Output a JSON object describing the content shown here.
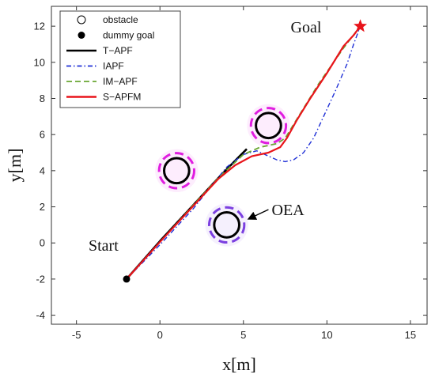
{
  "chart_data": {
    "type": "line",
    "xlabel": "x[m]",
    "ylabel": "y[m]",
    "xlim": [
      -6.5,
      16
    ],
    "ylim": [
      -4.5,
      13.1
    ],
    "xticks": [
      -5,
      0,
      5,
      10,
      15
    ],
    "yticks": [
      -4,
      -2,
      0,
      2,
      4,
      6,
      8,
      10,
      12
    ],
    "grid": false,
    "legend_position": "top-left",
    "legend": [
      {
        "label": "obstacle",
        "marker": "open-circle",
        "color": "#000000"
      },
      {
        "label": "dummy goal",
        "marker": "filled-circle",
        "color": "#000000"
      },
      {
        "label": "T−APF",
        "line": "solid",
        "color": "#000000"
      },
      {
        "label": "IAPF",
        "line": "dashdot",
        "color": "#1f2fd6"
      },
      {
        "label": "IM−APF",
        "line": "dashed",
        "color": "#6aa632"
      },
      {
        "label": "S−APFM",
        "line": "solid",
        "color": "#e8141a"
      }
    ],
    "start": {
      "label": "Start",
      "x": -2,
      "y": -2
    },
    "goal": {
      "label": "Goal",
      "x": 12,
      "y": 12,
      "marker": "star",
      "color": "#e8141a"
    },
    "obstacles": [
      {
        "x": 1,
        "y": 4,
        "r": 0.75,
        "oea_r": 1.05,
        "oea_color": "#e01ee0"
      },
      {
        "x": 6.5,
        "y": 6.5,
        "r": 0.75,
        "oea_r": 1.05,
        "oea_color": "#e01ee0"
      },
      {
        "x": 4,
        "y": 1,
        "r": 0.75,
        "oea_r": 1.05,
        "oea_color": "#7b3fe0"
      }
    ],
    "annotation": {
      "text": "OEA",
      "x": 6.6,
      "y": 1.85,
      "arrow_from": [
        6.5,
        1.85
      ],
      "arrow_to": [
        5.35,
        1.35
      ]
    },
    "series": [
      {
        "name": "T−APF",
        "color": "#000000",
        "dash": "solid",
        "x": [
          -2,
          0,
          2,
          3.5,
          4.5,
          5.2
        ],
        "y": [
          -2,
          0.1,
          2.1,
          3.6,
          4.55,
          5.2
        ]
      },
      {
        "name": "IAPF",
        "color": "#1f2fd6",
        "dash": "dashdot",
        "x": [
          -2,
          0,
          2,
          3.2,
          4,
          5,
          5.8,
          6.4,
          7,
          7.5,
          8,
          8.6,
          9.2,
          9.8,
          10.5,
          11.2,
          11.6,
          12
        ],
        "y": [
          -2,
          -0.1,
          1.9,
          3.3,
          4.2,
          4.9,
          5.1,
          4.85,
          4.6,
          4.5,
          4.6,
          5.0,
          5.8,
          7.0,
          8.4,
          9.9,
          11.0,
          12
        ]
      },
      {
        "name": "IM−APF",
        "color": "#6aa632",
        "dash": "dashed",
        "x": [
          -2,
          0,
          2,
          3.5,
          5,
          6,
          7,
          7.5,
          8.3,
          9.5,
          11,
          12
        ],
        "y": [
          -2,
          0.05,
          2.1,
          3.6,
          4.9,
          5.3,
          5.5,
          5.8,
          7.0,
          8.8,
          10.8,
          12
        ]
      },
      {
        "name": "S−APFM",
        "color": "#e8141a",
        "dash": "solid",
        "x": [
          -2,
          0,
          2,
          3.5,
          4.5,
          5.5,
          6.5,
          7.2,
          7.6,
          8.2,
          9,
          10,
          11,
          11.6,
          12
        ],
        "y": [
          -2,
          0.05,
          2.05,
          3.55,
          4.3,
          4.8,
          5.0,
          5.3,
          5.8,
          6.8,
          8.0,
          9.4,
          10.9,
          11.5,
          12
        ]
      }
    ]
  }
}
